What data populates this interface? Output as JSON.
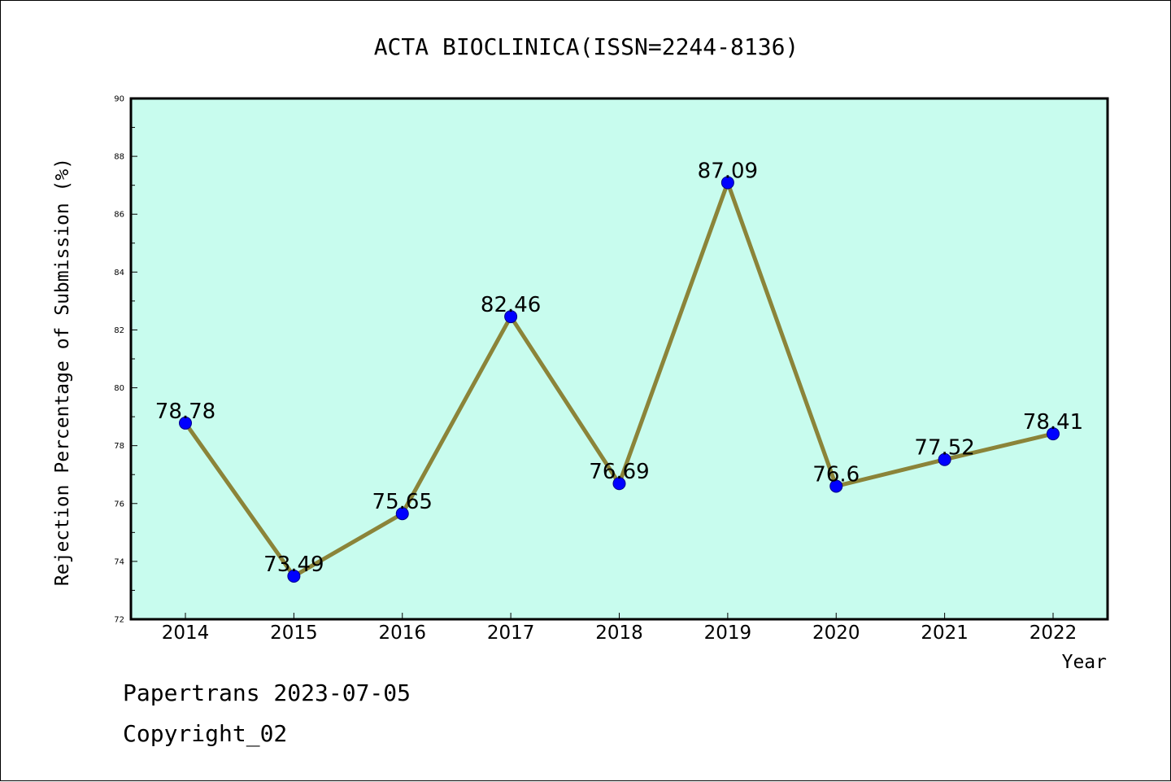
{
  "chart_data": {
    "type": "line",
    "title": "ACTA BIOCLINICA(ISSN=2244-8136)",
    "xlabel": "Year",
    "ylabel": "Rejection Percentage of Submission (%)",
    "categories": [
      "2014",
      "2015",
      "2016",
      "2017",
      "2018",
      "2019",
      "2020",
      "2021",
      "2022"
    ],
    "series": [
      {
        "values": [
          78.78,
          73.49,
          75.65,
          82.46,
          76.69,
          87.09,
          76.6,
          77.52,
          78.41
        ],
        "data_labels": [
          "78.78",
          "73.49",
          "75.65",
          "82.46",
          "76.69",
          "87.09",
          "76.6",
          "77.52",
          "78.41"
        ]
      }
    ],
    "yticks": [
      "72",
      "74",
      "76",
      "78",
      "80",
      "82",
      "84",
      "86",
      "88",
      "90"
    ],
    "ylim": [
      72,
      90
    ],
    "grid": false,
    "legend": "none",
    "colors": {
      "plot_background": "#c8fcee",
      "line": "#8b8439",
      "marker": "#0000ff"
    }
  },
  "footer": {
    "line1": "Papertrans 2023-07-05",
    "line2": "Copyright_02"
  }
}
